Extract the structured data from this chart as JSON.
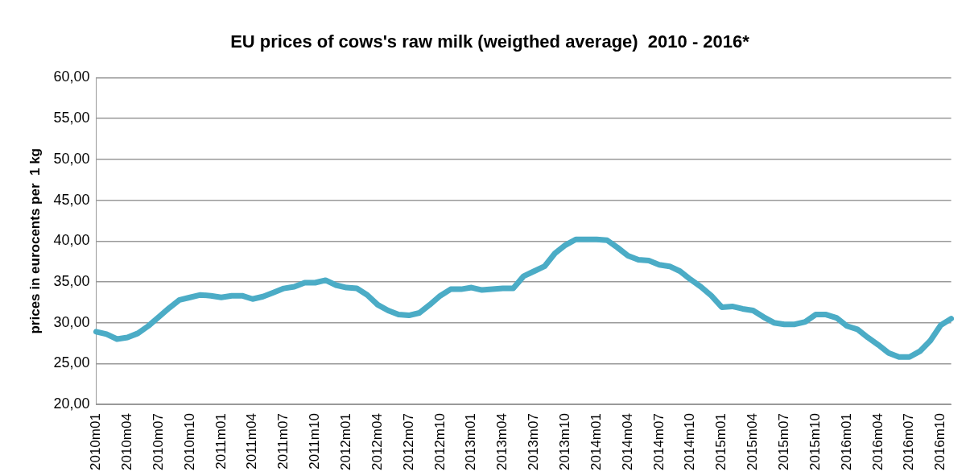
{
  "chart_data": {
    "type": "line",
    "title": "EU prices of cows's raw milk (weigthed average)  2010 - 2016*",
    "ylabel": "prices in eurocents per  1 kg",
    "categories": [
      "2010m01",
      null,
      null,
      "2010m04",
      null,
      null,
      "2010m07",
      null,
      null,
      "2010m10",
      null,
      null,
      "2011m01",
      null,
      null,
      "2011m04",
      null,
      null,
      "2011m07",
      null,
      null,
      "2011m10",
      null,
      null,
      "2012m01",
      null,
      null,
      "2012m04",
      null,
      null,
      "2012m07",
      null,
      null,
      "2012m10",
      null,
      null,
      "2013m01",
      null,
      null,
      "2013m04",
      null,
      null,
      "2013m07",
      null,
      null,
      "2013m10",
      null,
      null,
      "2014m01",
      null,
      null,
      "2014m04",
      null,
      null,
      "2014m07",
      null,
      null,
      "2014m10",
      null,
      null,
      "2015m01",
      null,
      null,
      "2015m04",
      null,
      null,
      "2015m07",
      null,
      null,
      "2015m10",
      null,
      null,
      "2016m01",
      null,
      null,
      "2016m04",
      null,
      null,
      "2016m07",
      null,
      null,
      "2016m10",
      null
    ],
    "series": [
      {
        "color": "#4bacc6",
        "values": [
          28.9,
          28.6,
          28.0,
          28.2,
          28.7,
          29.6,
          30.7,
          31.8,
          32.8,
          33.1,
          33.4,
          33.3,
          33.1,
          33.3,
          33.3,
          32.9,
          33.2,
          33.7,
          34.2,
          34.4,
          34.9,
          34.9,
          35.2,
          34.6,
          34.3,
          34.2,
          33.4,
          32.2,
          31.5,
          31.0,
          30.9,
          31.2,
          32.2,
          33.3,
          34.1,
          34.1,
          34.3,
          34.0,
          34.1,
          34.2,
          34.2,
          35.7,
          36.3,
          36.9,
          38.5,
          39.5,
          40.2,
          40.2,
          40.2,
          40.1,
          39.2,
          38.2,
          37.7,
          37.6,
          37.1,
          36.9,
          36.3,
          35.3,
          34.4,
          33.3,
          31.9,
          32.0,
          31.7,
          31.5,
          30.7,
          30.0,
          29.8,
          29.8,
          30.1,
          31.0,
          31.0,
          30.6,
          29.6,
          29.2,
          28.2,
          27.3,
          26.3,
          25.8,
          25.8,
          26.5,
          27.8,
          29.7,
          30.5
        ]
      }
    ],
    "ylim": [
      20,
      60
    ],
    "yticks": [
      {
        "value": 20,
        "label": "20,00"
      },
      {
        "value": 25,
        "label": "25,00"
      },
      {
        "value": 30,
        "label": "30,00"
      },
      {
        "value": 35,
        "label": "35,00"
      },
      {
        "value": 40,
        "label": "40,00"
      },
      {
        "value": 45,
        "label": "45,00"
      },
      {
        "value": 50,
        "label": "50,00"
      },
      {
        "value": 55,
        "label": "55,00"
      },
      {
        "value": 60,
        "label": "60,00"
      }
    ],
    "grid": "y",
    "legend": false,
    "marker": "none",
    "line_style": "solid"
  }
}
